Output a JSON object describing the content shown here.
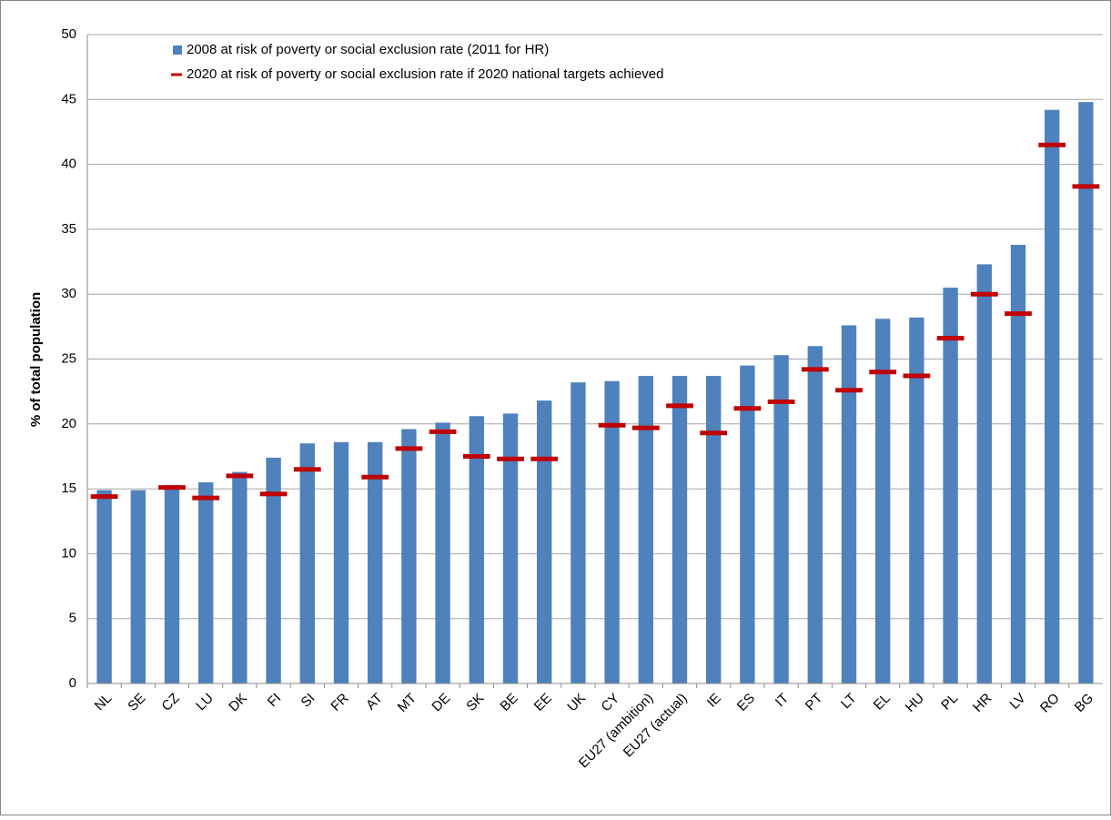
{
  "chart_data": {
    "type": "bar",
    "y_label": "% of total population",
    "categories": [
      "NL",
      "SE",
      "CZ",
      "LU",
      "DK",
      "FI",
      "SI",
      "FR",
      "AT",
      "MT",
      "DE",
      "SK",
      "BE",
      "EE",
      "UK",
      "CY",
      "EU27 (ambition)",
      "EU27 (actual)",
      "IE",
      "ES",
      "IT",
      "PT",
      "LT",
      "EL",
      "HU",
      "PL",
      "HR",
      "LV",
      "RO",
      "BG"
    ],
    "series": [
      {
        "name": "2008 at risk of poverty or social exclusion rate (2011 for HR)",
        "color": "#4f81bd",
        "style": "bar",
        "values": [
          14.9,
          14.9,
          15.3,
          15.5,
          16.3,
          17.4,
          18.5,
          18.6,
          18.6,
          19.6,
          20.1,
          20.6,
          20.8,
          21.8,
          23.2,
          23.3,
          23.7,
          23.7,
          23.7,
          24.5,
          25.3,
          26.0,
          27.6,
          28.1,
          28.2,
          30.5,
          32.3,
          33.8,
          44.2,
          44.8
        ]
      },
      {
        "name": "2020 at risk of poverty or social exclusion rate if 2020 national targets achieved",
        "color": "#c00000",
        "style": "dash",
        "values": [
          14.4,
          null,
          15.1,
          14.3,
          16.0,
          14.6,
          16.5,
          null,
          15.9,
          18.1,
          19.4,
          17.5,
          17.3,
          17.3,
          null,
          19.9,
          19.7,
          21.4,
          19.3,
          21.2,
          21.7,
          24.2,
          22.6,
          24.0,
          23.7,
          26.6,
          30.0,
          28.5,
          41.5,
          38.3
        ]
      }
    ],
    "ylim": [
      0,
      50
    ],
    "yticks": [
      0,
      5,
      10,
      15,
      20,
      25,
      30,
      35,
      40,
      45,
      50
    ],
    "grid": true
  }
}
